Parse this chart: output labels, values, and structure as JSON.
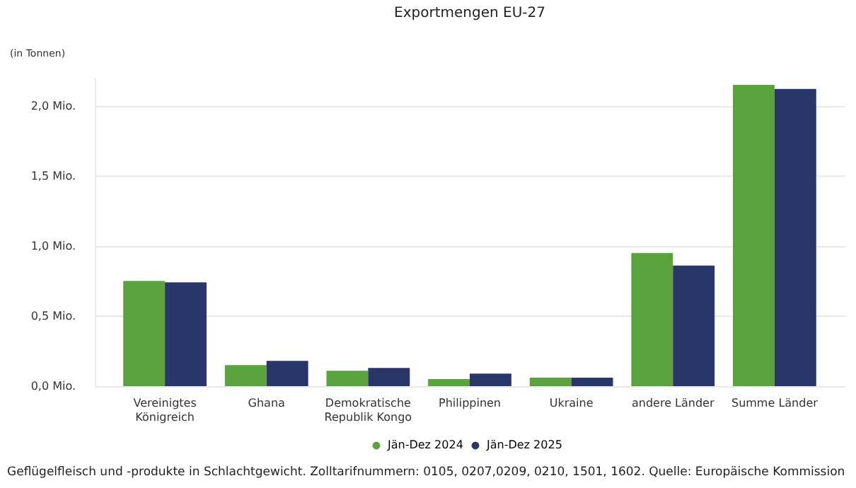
{
  "chart_data": {
    "type": "bar",
    "title": "Exportmengen EU-27",
    "ylabel": "(in Tonnen)",
    "categories": [
      "Vereinigtes Königreich",
      "Ghana",
      "Demokratische Republik Kongo",
      "Philippinen",
      "Ukraine",
      "andere Länder",
      "Summe Länder"
    ],
    "series": [
      {
        "name": "Jän-Dez 2024",
        "color": "#5aa33c",
        "values": [
          0.75,
          0.15,
          0.11,
          0.05,
          0.06,
          0.95,
          2.15
        ]
      },
      {
        "name": "Jän-Dez 2025",
        "color": "#2b3668",
        "values": [
          0.74,
          0.18,
          0.13,
          0.09,
          0.06,
          0.86,
          2.12
        ]
      }
    ],
    "yticks": [
      {
        "value": 0,
        "label": "0,0 Mio."
      },
      {
        "value": 0.5,
        "label": "0,5 Mio."
      },
      {
        "value": 1,
        "label": "1,0 Mio."
      },
      {
        "value": 1.5,
        "label": "1,5 Mio."
      },
      {
        "value": 2,
        "label": "2,0 Mio."
      }
    ],
    "ylim": [
      0,
      2.2
    ],
    "grid": "y",
    "legend": "bottom",
    "annotations": [
      "Geflügelfleisch und -produkte in Schlachtgewicht. Zolltarifnummern: 0105, 0207,0209, 0210, 1501, 1602. Quelle: Europäische Kommission"
    ]
  }
}
